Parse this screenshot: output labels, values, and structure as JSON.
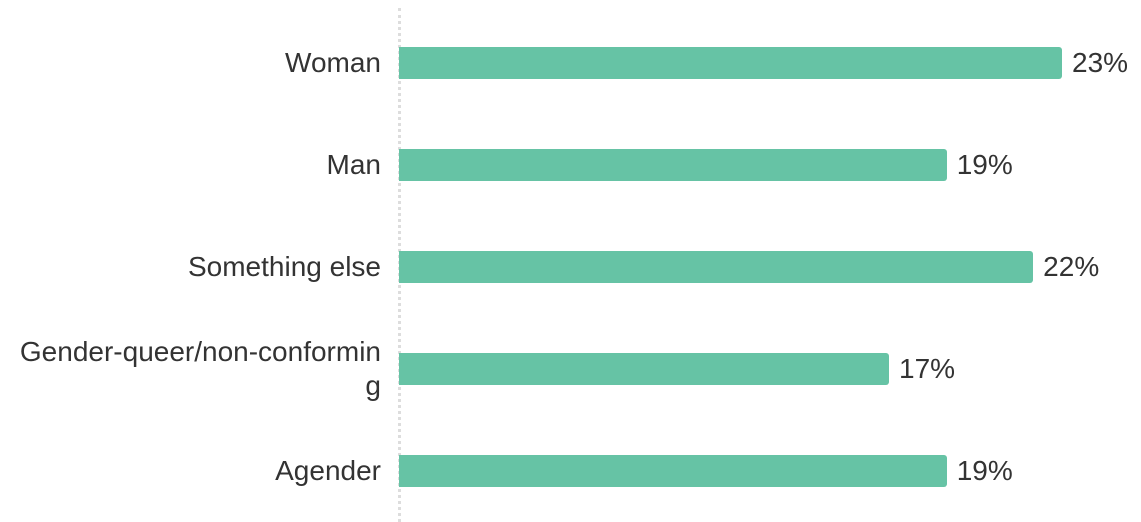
{
  "chart_data": {
    "type": "bar",
    "orientation": "horizontal",
    "categories": [
      "Woman",
      "Man",
      "Something else",
      "Gender-queer/non-conforming",
      "Agender"
    ],
    "values": [
      23,
      19,
      22,
      17,
      19
    ],
    "value_labels": [
      "23%",
      "19%",
      "22%",
      "17%",
      "19%"
    ],
    "color": "#66c3a5"
  }
}
